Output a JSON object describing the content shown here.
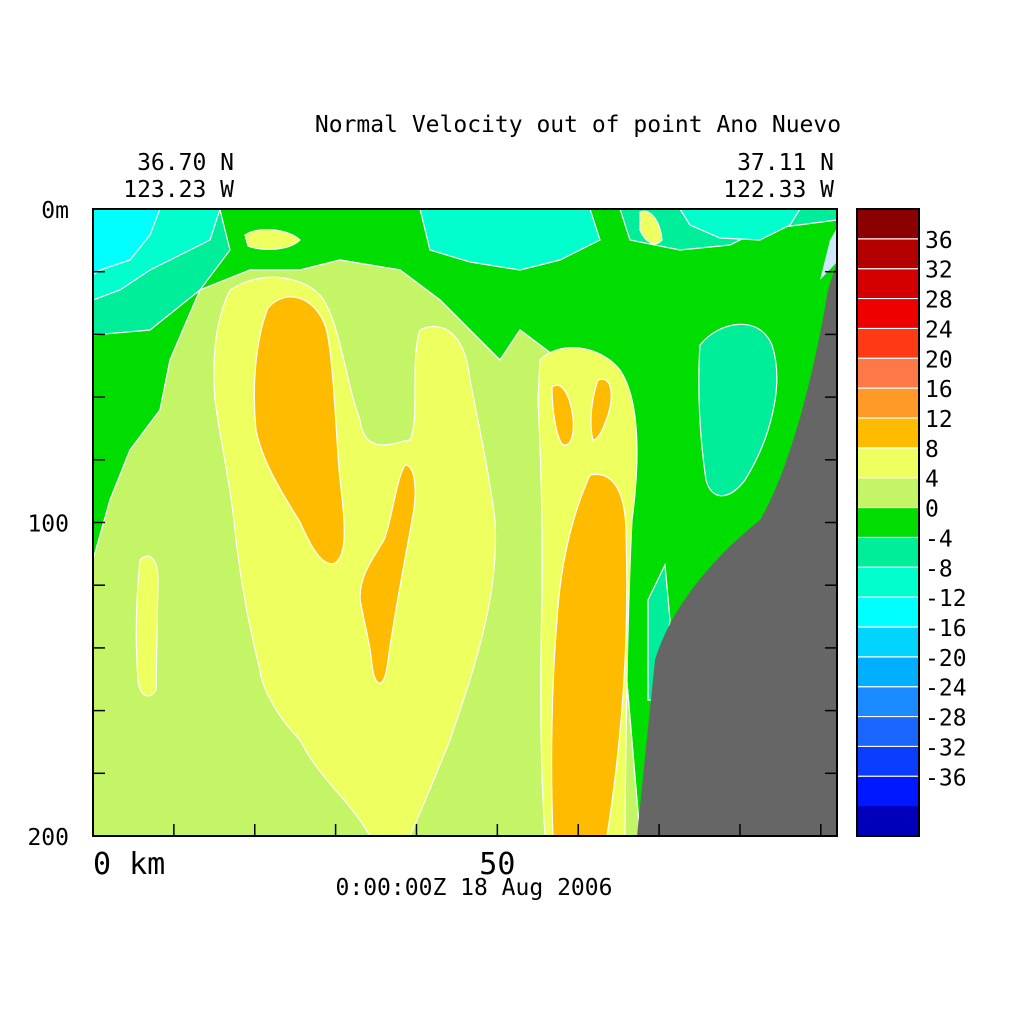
{
  "chart_data": {
    "type": "heatmap",
    "title": "Normal Velocity out of point Ano Nuevo",
    "left_endpoint": {
      "lat": "36.70 N",
      "lon": "123.23 W"
    },
    "right_endpoint": {
      "lat": "37.11 N",
      "lon": "122.33 W"
    },
    "timestamp": "0:00:00Z  18 Aug 2006",
    "x_axis": {
      "range": [
        0,
        92
      ],
      "tick_labels": [
        {
          "value": 0,
          "text": "0 km"
        },
        {
          "value": 50,
          "text": "50"
        }
      ],
      "minor_ticks": [
        10,
        20,
        30,
        40,
        60,
        70,
        80,
        90
      ]
    },
    "y_axis": {
      "range": [
        0,
        200
      ],
      "inverted": true,
      "tick_labels": [
        {
          "value": 0,
          "text": "0m"
        },
        {
          "value": 100,
          "text": "100"
        },
        {
          "value": 200,
          "text": "200"
        }
      ],
      "minor_ticks": [
        20,
        40,
        60,
        80,
        120,
        140,
        160,
        180
      ]
    },
    "colorbar": {
      "labels": [
        "36",
        "32",
        "28",
        "24",
        "20",
        "16",
        "12",
        "8",
        "4",
        "0",
        "-4",
        "-8",
        "-12",
        "-16",
        "-20",
        "-24",
        "-28",
        "-32",
        "-36"
      ],
      "colors": [
        "#8b0000",
        "#b50000",
        "#d40000",
        "#ee0000",
        "#ff3a14",
        "#ff7848",
        "#ff9a28",
        "#ffbb00",
        "#eeff60",
        "#c4f566",
        "#00dd00",
        "#00ee99",
        "#00ffcc",
        "#00ffff",
        "#00d4ff",
        "#00b0ff",
        "#1a8cff",
        "#1a66ff",
        "#0a3dff",
        "#0018ff",
        "#0000bb"
      ]
    },
    "contour_colors": {
      "neg8": "#00ffcc",
      "neg4": "#00ee99",
      "zero": "#00dd00",
      "pos4": "#c4f566",
      "pos8": "#eeff60",
      "pos12": "#ffbb00",
      "land": "#666666",
      "neg12": "#00ffff"
    }
  }
}
